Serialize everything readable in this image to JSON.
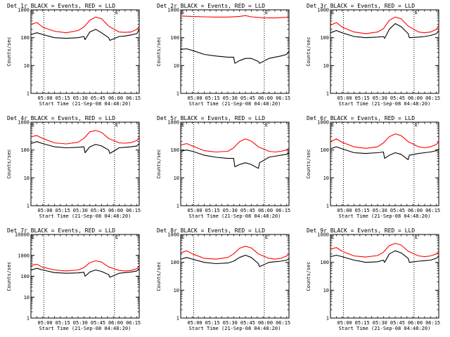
{
  "figure": {
    "x_tick_labels": [
      "05:00",
      "05:15",
      "05:30",
      "05:45",
      "06:00",
      "06:15"
    ],
    "y_tick_labels_default": [
      "1",
      "10",
      "100",
      "1000"
    ],
    "y_tick_labels_large": [
      "1",
      "10",
      "100",
      "1000",
      "10000"
    ],
    "ylabel": "Counts/sec",
    "xlabel": "Start Time (21-Sep-08 04:48:20)",
    "marker_label": "E",
    "colors": {
      "events": "#000000",
      "lld": "#ff0000",
      "axes": "#000000",
      "background": "#ffffff"
    }
  },
  "chart_data": [
    {
      "type": "line",
      "title": "Det 1r  BLACK = Events, RED = LLD",
      "xlabel": "Start Time (21-Sep-08 04:48:20)",
      "ylabel": "Counts/sec",
      "xlim": [
        0,
        92
      ],
      "ylim": [
        1,
        1000
      ],
      "yscale": "log",
      "marker_lines_min": [
        11,
        71
      ],
      "series": [
        {
          "name": "Events",
          "color": "#000000",
          "x": [
            0,
            5,
            10,
            20,
            30,
            40,
            45,
            46,
            50,
            55,
            60,
            66,
            67,
            75,
            80,
            85,
            90,
            92
          ],
          "y": [
            130,
            150,
            130,
            100,
            95,
            100,
            110,
            85,
            160,
            200,
            150,
            100,
            80,
            110,
            115,
            125,
            140,
            200
          ]
        },
        {
          "name": "LLD",
          "color": "#ff0000",
          "x": [
            0,
            5,
            10,
            20,
            30,
            40,
            45,
            50,
            55,
            60,
            66,
            75,
            80,
            85,
            90,
            92
          ],
          "y": [
            300,
            350,
            240,
            170,
            150,
            180,
            240,
            420,
            550,
            480,
            260,
            160,
            155,
            160,
            200,
            260
          ]
        }
      ]
    },
    {
      "type": "line",
      "title": "Det 2r  BLACK = Events, RED = LLD",
      "xlabel": "Start Time (21-Sep-08 04:48:20)",
      "ylabel": "Counts/sec",
      "xlim": [
        0,
        92
      ],
      "ylim": [
        1,
        1000
      ],
      "yscale": "log",
      "marker_lines_min": [
        11,
        71
      ],
      "series": [
        {
          "name": "Events",
          "color": "#000000",
          "x": [
            0,
            5,
            10,
            20,
            30,
            40,
            45,
            46,
            50,
            55,
            60,
            66,
            67,
            75,
            80,
            85,
            90,
            92
          ],
          "y": [
            38,
            40,
            35,
            25,
            22,
            20,
            20,
            12,
            15,
            18,
            18,
            14,
            12,
            18,
            20,
            22,
            25,
            33
          ]
        },
        {
          "name": "LLD",
          "color": "#ff0000",
          "x": [
            0,
            10,
            20,
            30,
            40,
            50,
            55,
            60,
            70,
            80,
            90,
            92
          ],
          "y": [
            600,
            580,
            560,
            550,
            550,
            580,
            620,
            560,
            520,
            510,
            540,
            560
          ]
        }
      ]
    },
    {
      "type": "line",
      "title": "Det 3r  BLACK = Events, RED = LLD",
      "xlabel": "Start Time (21-Sep-08 04:48:20)",
      "ylabel": "Counts/sec",
      "xlim": [
        0,
        92
      ],
      "ylim": [
        1,
        1000
      ],
      "yscale": "log",
      "marker_lines_min": [
        11,
        71
      ],
      "series": [
        {
          "name": "Events",
          "color": "#000000",
          "x": [
            0,
            5,
            10,
            20,
            30,
            40,
            45,
            46,
            50,
            55,
            60,
            66,
            67,
            75,
            80,
            85,
            90,
            92
          ],
          "y": [
            150,
            180,
            150,
            110,
            100,
            105,
            110,
            95,
            200,
            320,
            250,
            140,
            100,
            105,
            110,
            120,
            140,
            180
          ]
        },
        {
          "name": "LLD",
          "color": "#ff0000",
          "x": [
            0,
            5,
            10,
            20,
            30,
            40,
            45,
            50,
            55,
            60,
            66,
            75,
            80,
            85,
            90,
            92
          ],
          "y": [
            280,
            350,
            240,
            160,
            140,
            160,
            210,
            420,
            550,
            480,
            260,
            160,
            150,
            160,
            200,
            280
          ]
        }
      ]
    },
    {
      "type": "line",
      "title": "Det 4r  BLACK = Events, RED = LLD",
      "xlabel": "Start Time (21-Sep-08 04:48:20)",
      "ylabel": "Counts/sec",
      "xlim": [
        0,
        92
      ],
      "ylim": [
        1,
        1000
      ],
      "yscale": "log",
      "marker_lines_min": [
        11,
        71
      ],
      "series": [
        {
          "name": "Events",
          "color": "#000000",
          "x": [
            0,
            5,
            10,
            20,
            30,
            40,
            45,
            46,
            50,
            55,
            60,
            66,
            67,
            75,
            80,
            85,
            90,
            92
          ],
          "y": [
            170,
            200,
            170,
            130,
            120,
            125,
            130,
            80,
            130,
            160,
            140,
            100,
            75,
            120,
            125,
            130,
            140,
            170
          ]
        },
        {
          "name": "LLD",
          "color": "#ff0000",
          "x": [
            0,
            5,
            10,
            20,
            30,
            40,
            45,
            50,
            55,
            60,
            66,
            75,
            80,
            85,
            90,
            92
          ],
          "y": [
            300,
            330,
            260,
            180,
            165,
            190,
            260,
            450,
            500,
            430,
            260,
            180,
            175,
            185,
            220,
            280
          ]
        }
      ]
    },
    {
      "type": "line",
      "title": "Det 5r  BLACK = Events, RED = LLD",
      "xlabel": "Start Time (21-Sep-08 04:48:20)",
      "ylabel": "Counts/sec",
      "xlim": [
        0,
        92
      ],
      "ylim": [
        1,
        1000
      ],
      "yscale": "log",
      "marker_lines_min": [
        11,
        71
      ],
      "series": [
        {
          "name": "Events",
          "color": "#000000",
          "x": [
            0,
            5,
            10,
            20,
            30,
            40,
            45,
            46,
            50,
            55,
            60,
            66,
            67,
            75,
            80,
            85,
            90,
            92
          ],
          "y": [
            90,
            100,
            90,
            65,
            55,
            50,
            50,
            25,
            30,
            35,
            30,
            22,
            35,
            55,
            60,
            65,
            70,
            80
          ]
        },
        {
          "name": "LLD",
          "color": "#ff0000",
          "x": [
            0,
            5,
            10,
            20,
            30,
            40,
            45,
            50,
            55,
            60,
            66,
            75,
            80,
            85,
            90,
            92
          ],
          "y": [
            150,
            170,
            140,
            95,
            85,
            90,
            120,
            200,
            250,
            210,
            130,
            90,
            85,
            90,
            100,
            120
          ]
        }
      ]
    },
    {
      "type": "line",
      "title": "Det 6r  BLACK = Events, RED = LLD",
      "xlabel": "Start Time (21-Sep-08 04:48:20)",
      "ylabel": "Counts/sec",
      "xlim": [
        0,
        92
      ],
      "ylim": [
        1,
        1000
      ],
      "yscale": "log",
      "marker_lines_min": [
        11,
        71
      ],
      "series": [
        {
          "name": "Events",
          "color": "#000000",
          "x": [
            0,
            5,
            10,
            20,
            30,
            40,
            45,
            46,
            50,
            55,
            60,
            66,
            67,
            75,
            80,
            85,
            90,
            92
          ],
          "y": [
            110,
            130,
            110,
            80,
            75,
            80,
            85,
            50,
            65,
            80,
            70,
            45,
            65,
            75,
            80,
            85,
            95,
            110
          ]
        },
        {
          "name": "LLD",
          "color": "#ff0000",
          "x": [
            0,
            5,
            10,
            20,
            30,
            40,
            45,
            50,
            55,
            60,
            66,
            75,
            80,
            85,
            90,
            92
          ],
          "y": [
            200,
            250,
            190,
            130,
            115,
            130,
            180,
            300,
            380,
            330,
            200,
            130,
            120,
            130,
            160,
            200
          ]
        }
      ]
    },
    {
      "type": "line",
      "title": "Det 7r  BLACK = Events, RED = LLD",
      "xlabel": "Start Time (21-Sep-08 04:48:20)",
      "ylabel": "Counts/sec",
      "xlim": [
        0,
        92
      ],
      "ylim": [
        1,
        10000
      ],
      "yscale": "log",
      "marker_lines_min": [
        11,
        71
      ],
      "series": [
        {
          "name": "Events",
          "color": "#000000",
          "x": [
            0,
            5,
            10,
            20,
            30,
            40,
            45,
            46,
            50,
            55,
            60,
            66,
            67,
            75,
            80,
            85,
            90,
            92
          ],
          "y": [
            200,
            240,
            200,
            150,
            140,
            145,
            155,
            100,
            160,
            200,
            170,
            120,
            90,
            140,
            150,
            160,
            180,
            240
          ]
        },
        {
          "name": "LLD",
          "color": "#ff0000",
          "x": [
            0,
            5,
            10,
            20,
            30,
            40,
            45,
            50,
            55,
            60,
            66,
            75,
            80,
            85,
            90,
            92
          ],
          "y": [
            330,
            380,
            270,
            200,
            180,
            200,
            260,
            450,
            550,
            480,
            280,
            190,
            180,
            190,
            230,
            320
          ]
        }
      ]
    },
    {
      "type": "line",
      "title": "Det 8r  BLACK = Events, RED = LLD",
      "xlabel": "Start Time (21-Sep-08 04:48:20)",
      "ylabel": "Counts/sec",
      "xlim": [
        0,
        92
      ],
      "ylim": [
        1,
        1000
      ],
      "yscale": "log",
      "marker_lines_min": [
        11,
        71
      ],
      "series": [
        {
          "name": "Events",
          "color": "#000000",
          "x": [
            0,
            5,
            10,
            20,
            30,
            40,
            45,
            50,
            55,
            60,
            66,
            67,
            75,
            80,
            85,
            90,
            92
          ],
          "y": [
            130,
            150,
            130,
            100,
            90,
            95,
            110,
            150,
            180,
            150,
            90,
            70,
            100,
            105,
            110,
            120,
            140
          ]
        },
        {
          "name": "LLD",
          "color": "#ff0000",
          "x": [
            0,
            5,
            10,
            20,
            30,
            40,
            45,
            50,
            55,
            60,
            66,
            75,
            80,
            85,
            90,
            92
          ],
          "y": [
            220,
            260,
            200,
            140,
            130,
            150,
            200,
            320,
            380,
            330,
            200,
            140,
            130,
            140,
            170,
            200
          ]
        }
      ]
    },
    {
      "type": "line",
      "title": "Det 9r  BLACK = Events, RED = LLD",
      "xlabel": "Start Time (21-Sep-08 04:48:20)",
      "ylabel": "Counts/sec",
      "xlim": [
        0,
        92
      ],
      "ylim": [
        1,
        1000
      ],
      "yscale": "log",
      "marker_lines_min": [
        11,
        71
      ],
      "series": [
        {
          "name": "Events",
          "color": "#000000",
          "x": [
            0,
            5,
            10,
            20,
            30,
            40,
            45,
            46,
            50,
            55,
            60,
            66,
            67,
            75,
            80,
            85,
            90,
            92
          ],
          "y": [
            160,
            180,
            160,
            120,
            100,
            105,
            120,
            100,
            200,
            260,
            220,
            140,
            100,
            110,
            115,
            120,
            140,
            170
          ]
        },
        {
          "name": "LLD",
          "color": "#ff0000",
          "x": [
            0,
            5,
            10,
            20,
            30,
            40,
            45,
            50,
            55,
            60,
            66,
            75,
            80,
            85,
            90,
            92
          ],
          "y": [
            300,
            340,
            250,
            170,
            155,
            175,
            230,
            400,
            480,
            420,
            250,
            170,
            160,
            170,
            200,
            260
          ]
        }
      ]
    }
  ]
}
